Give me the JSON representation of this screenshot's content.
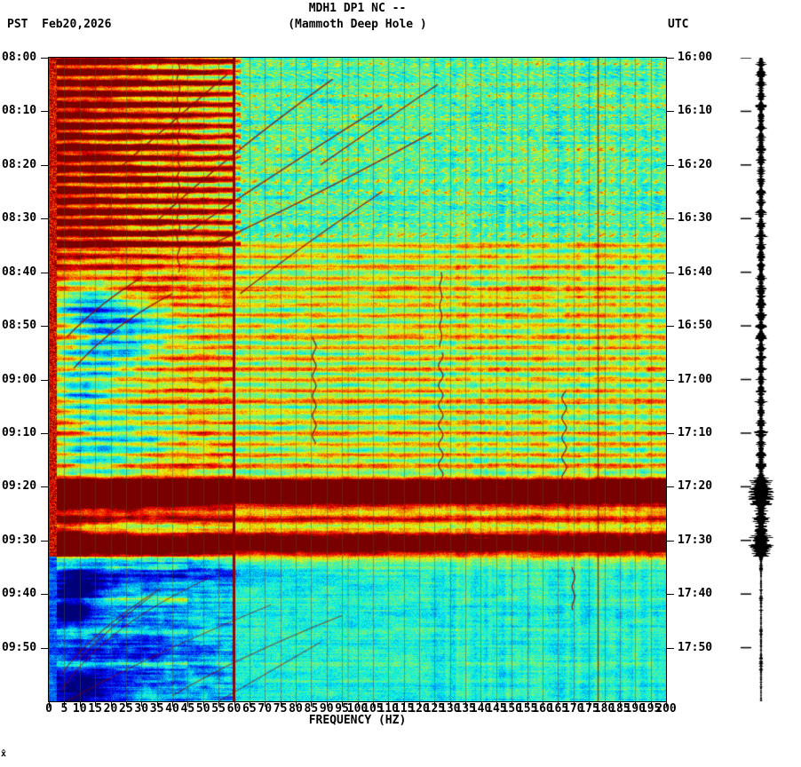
{
  "header": {
    "title": "MDH1 DP1 NC --",
    "subtitle": "(Mammoth Deep Hole )",
    "left_label": "PST  Feb20,2026",
    "right_label": "UTC"
  },
  "footer": {
    "corner_note": "x̂"
  },
  "axes": {
    "x_title": "FREQUENCY (HZ)",
    "freq_tick_labels": [
      0,
      5,
      10,
      15,
      20,
      25,
      30,
      35,
      40,
      45,
      50,
      55,
      60,
      65,
      70,
      75,
      80,
      85,
      90,
      95,
      100,
      105,
      110,
      115,
      120,
      125,
      130,
      135,
      140,
      145,
      150,
      155,
      160,
      165,
      170,
      175,
      180,
      185,
      190,
      195,
      200
    ],
    "pst_tick_labels": [
      "08:00",
      "08:10",
      "08:20",
      "08:30",
      "08:40",
      "08:50",
      "09:00",
      "09:10",
      "09:20",
      "09:30",
      "09:40",
      "09:50"
    ],
    "utc_tick_labels": [
      "16:00",
      "16:10",
      "16:20",
      "16:30",
      "16:40",
      "16:50",
      "17:00",
      "17:10",
      "17:20",
      "17:30",
      "17:40",
      "17:50"
    ],
    "time_tick_step_min": 10
  },
  "chart_data": {
    "type": "heatmap",
    "subtype": "seismic-spectrogram",
    "station": "MDH1",
    "channel": "DP1",
    "network": "NC",
    "location_name": "Mammoth Deep Hole",
    "date_pst": "Feb20,2026",
    "time_span_pst": [
      "08:00",
      "10:00"
    ],
    "time_span_utc": [
      "16:00",
      "18:00"
    ],
    "duration_min": 120,
    "freq_range_hz": [
      0,
      200
    ],
    "freq_tick_step_hz": 5,
    "colormap": "jet",
    "colors": {
      "background_calm": "#3fe0c8",
      "event_saturated": "#8b0000",
      "grid_line": "#50502a",
      "trace": "#000000",
      "frame": "#000000"
    },
    "features": {
      "quiet_after_min": 93,
      "persistent_vertical_lines_hz": [
        [
          60,
          3,
          0.95
        ],
        [
          178,
          1.5,
          0.75
        ],
        [
          97,
          1,
          0.3
        ]
      ],
      "event_bands": [
        [
          1,
          0.5,
          0.6,
          0
        ],
        [
          3,
          0.5,
          0.6,
          0
        ],
        [
          5,
          0.55,
          0.6,
          0
        ],
        [
          7,
          0.5,
          0.6,
          0
        ],
        [
          9,
          0.55,
          0.6,
          0
        ],
        [
          11,
          0.5,
          0.6,
          0
        ],
        [
          13,
          0.55,
          0.6,
          0
        ],
        [
          15,
          0.5,
          0.6,
          0
        ],
        [
          17,
          0.55,
          0.6,
          0
        ],
        [
          19,
          0.5,
          0.6,
          0
        ],
        [
          21,
          0.55,
          0.6,
          0
        ],
        [
          23,
          0.5,
          0.6,
          0
        ],
        [
          25,
          0.55,
          0.6,
          0
        ],
        [
          27,
          0.5,
          0.6,
          0
        ],
        [
          29,
          0.55,
          0.6,
          0
        ],
        [
          31,
          0.5,
          0.6,
          0
        ],
        [
          33,
          0.55,
          0.6,
          0
        ],
        [
          35,
          0.55,
          0.6,
          1
        ],
        [
          37,
          0.5,
          0.6,
          1
        ],
        [
          39,
          0.55,
          0.6,
          1
        ],
        [
          41,
          0.5,
          0.6,
          1
        ],
        [
          43,
          0.6,
          0.7,
          1
        ],
        [
          44.5,
          0.5,
          0.5,
          1
        ],
        [
          46,
          0.5,
          0.6,
          1
        ],
        [
          48,
          0.55,
          0.6,
          1
        ],
        [
          50,
          0.5,
          0.6,
          1
        ],
        [
          52,
          0.6,
          0.7,
          1
        ],
        [
          54,
          0.5,
          0.6,
          1
        ],
        [
          56,
          0.55,
          0.6,
          1
        ],
        [
          58,
          0.6,
          0.6,
          1
        ],
        [
          60,
          0.5,
          0.6,
          1
        ],
        [
          62,
          0.55,
          0.6,
          1
        ],
        [
          64,
          0.6,
          0.7,
          1
        ],
        [
          66,
          0.5,
          0.6,
          1
        ],
        [
          68,
          0.55,
          0.6,
          1
        ],
        [
          70,
          0.6,
          0.6,
          1
        ],
        [
          72,
          0.5,
          0.6,
          1
        ],
        [
          74,
          0.55,
          0.6,
          1
        ],
        [
          76,
          0.6,
          0.6,
          1
        ],
        [
          79,
          0.7,
          0.8,
          1
        ],
        [
          81.5,
          1.4,
          2.6,
          1
        ],
        [
          86,
          0.7,
          0.8,
          1
        ],
        [
          90.5,
          1.4,
          2.4,
          1
        ],
        [
          95,
          0.4,
          0.5,
          0
        ],
        [
          101,
          0.4,
          0.5,
          0
        ],
        [
          107,
          0.35,
          0.5,
          0
        ],
        [
          113,
          0.4,
          0.6,
          0
        ]
      ],
      "blue_patches": [
        [
          46,
          12,
          5,
          14,
          0.5
        ],
        [
          50,
          30,
          4,
          18,
          0.3
        ],
        [
          56,
          16,
          5,
          20,
          0.4
        ],
        [
          63,
          10,
          4,
          12,
          0.35
        ],
        [
          70,
          22,
          6,
          24,
          0.3
        ],
        [
          75,
          12,
          4,
          16,
          0.3
        ],
        [
          88,
          28,
          2.5,
          22,
          0.25
        ],
        [
          96,
          40,
          2,
          30,
          0.2
        ],
        [
          98,
          10,
          3,
          10,
          0.4
        ],
        [
          103,
          6,
          3,
          8,
          0.35
        ],
        [
          112,
          22,
          8,
          26,
          0.18
        ],
        [
          118,
          9,
          4,
          12,
          0.3
        ]
      ],
      "glide_curves": [
        [
          [
            34,
            31
          ],
          [
            58,
            18
          ],
          [
            92,
            4
          ]
        ],
        [
          [
            44,
            33
          ],
          [
            72,
            22
          ],
          [
            108,
            9
          ]
        ],
        [
          [
            52,
            35
          ],
          [
            86,
            26
          ],
          [
            124,
            14
          ]
        ],
        [
          [
            22,
            21
          ],
          [
            40,
            12
          ],
          [
            58,
            3
          ]
        ],
        [
          [
            62,
            44
          ],
          [
            82,
            35
          ],
          [
            108,
            25
          ]
        ],
        [
          [
            88,
            20
          ],
          [
            108,
            12
          ],
          [
            126,
            5
          ]
        ],
        [
          [
            8,
            58
          ],
          [
            20,
            50
          ],
          [
            40,
            44
          ]
        ],
        [
          [
            6,
            52
          ],
          [
            16,
            46
          ],
          [
            30,
            41
          ]
        ]
      ],
      "bottom_arcs": [
        [
          [
            4,
            118
          ],
          [
            18,
            106
          ],
          [
            52,
            97
          ]
        ],
        [
          [
            4,
            115
          ],
          [
            14,
            107
          ],
          [
            36,
            99
          ]
        ],
        [
          [
            6,
            120
          ],
          [
            30,
            112
          ],
          [
            72,
            102
          ]
        ],
        [
          [
            40,
            119
          ],
          [
            60,
            112
          ],
          [
            95,
            104
          ]
        ],
        [
          [
            10,
            112
          ],
          [
            20,
            106
          ],
          [
            34,
            100
          ]
        ],
        [
          [
            55,
            120
          ],
          [
            70,
            115
          ],
          [
            88,
            109
          ]
        ]
      ],
      "wiggle_lines": [
        [
          42,
          1,
          40,
          1.5
        ],
        [
          127,
          55,
          84,
          2.5
        ],
        [
          167,
          62,
          84,
          2.5
        ],
        [
          86,
          52,
          72,
          2
        ],
        [
          127,
          40,
          54,
          1.2
        ],
        [
          170,
          95,
          103,
          1.5
        ]
      ]
    }
  }
}
